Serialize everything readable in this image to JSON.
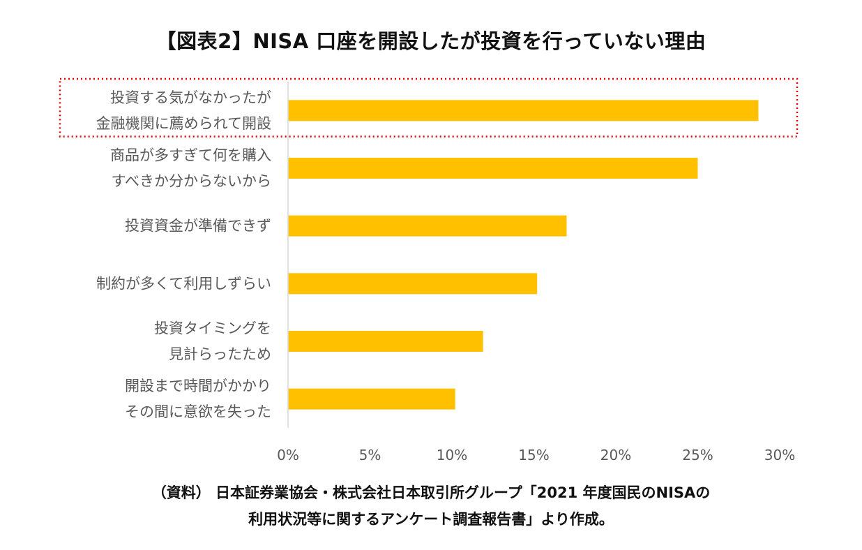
{
  "title": "【図表2】NISA 口座を開設したが投資を行っていない理由",
  "chart_data": {
    "type": "bar",
    "orientation": "horizontal",
    "categories": [
      [
        "投資する気がなかったが",
        "金融機関に薦められて開設"
      ],
      [
        "商品が多すぎて何を購入",
        "すべきか分からないから"
      ],
      [
        "投資資金が準備できず"
      ],
      [
        "制約が多くて利用しずらい"
      ],
      [
        "投資タイミングを",
        "見計らったため"
      ],
      [
        "開設まで時間がかかり",
        "その間に意欲を失った"
      ]
    ],
    "values": [
      28.7,
      25.0,
      17.0,
      15.2,
      11.9,
      10.2
    ],
    "unit": "%",
    "xlim": [
      0,
      30
    ],
    "xticks": [
      "0%",
      "5%",
      "10%",
      "15%",
      "20%",
      "25%",
      "30%"
    ],
    "bar_color": "#FFC000",
    "grid": false,
    "highlight_category_index": 0,
    "highlight_style": "red dotted box"
  },
  "source": {
    "line1": "（資料） 日本証券業協会・株式会社日本取引所グループ「2021 年度国民のNISAの",
    "line2": "利用状況等に関するアンケート調査報告書」より作成。"
  },
  "colors": {
    "bar": "#FFC000",
    "highlight": "#E00000",
    "axis": "#D9D9D9",
    "text": "#595959"
  }
}
